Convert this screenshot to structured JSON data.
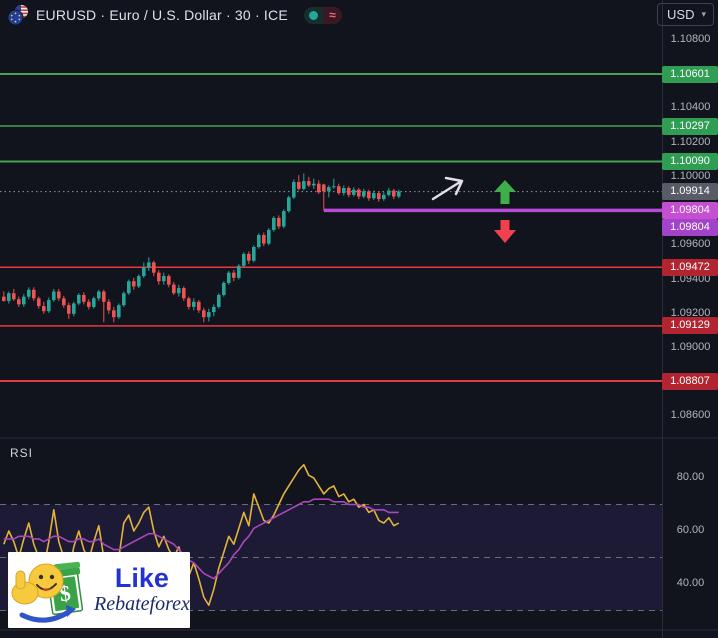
{
  "header": {
    "symbol_title": "EURUSD · Euro / U.S. Dollar · 30 · ICE",
    "delayed_glyph": "≈",
    "currency_selector": {
      "value": "USD",
      "chevron": "▾"
    }
  },
  "colors": {
    "background": "#11141d",
    "up_candle": "#26a69a",
    "down_candle": "#ef5350",
    "resistance_line": "#43a356",
    "support_line": "#e8383f",
    "trade_line": "#bb4ad8",
    "last_price_dotted": "#9598a1",
    "resistance_badge": "#2f9e53",
    "support_badge": "#b2242f",
    "last_price_badge": "#585c66",
    "trade_badge_primary": "#c44fd0",
    "trade_badge_secondary": "#a343c9",
    "rsi_line": "#e3b33a",
    "rsi_ma_line": "#ab47bc",
    "rsi_band_fill": "rgba(126,87,255,0.10)",
    "rsi_dashed": "#6a6d78",
    "up_arrow": "#3fae4a",
    "down_arrow": "#f0414e",
    "drawn_arrow": "#dfe1e6",
    "divider": "#2a2e39"
  },
  "price_axis": {
    "plain_labels": [
      {
        "label": "1.10800",
        "price": 1.108
      },
      {
        "label": "1.10400",
        "price": 1.104
      },
      {
        "label": "1.10200",
        "price": 1.102
      },
      {
        "label": "1.10000",
        "price": 1.1
      },
      {
        "label": "1.09600",
        "price": 1.096
      },
      {
        "label": "1.09400",
        "price": 1.094
      },
      {
        "label": "1.09200",
        "price": 1.092
      },
      {
        "label": "1.09000",
        "price": 1.09
      },
      {
        "label": "1.08600",
        "price": 1.086
      }
    ],
    "badges": [
      {
        "label": "1.10601",
        "price": 1.10601,
        "kind": "resistance",
        "dy": 0
      },
      {
        "label": "1.10297",
        "price": 1.10297,
        "kind": "resistance",
        "dy": 0
      },
      {
        "label": "1.10090",
        "price": 1.1009,
        "kind": "resistance",
        "dy": 0
      },
      {
        "label": "1.09914",
        "price": 1.09914,
        "kind": "last",
        "dy": 0
      },
      {
        "label": "1.09804",
        "price": 1.09804,
        "kind": "trade",
        "dy": 0
      },
      {
        "label": "1.09804",
        "price": 1.09804,
        "kind": "trade2",
        "dy": 17
      },
      {
        "label": "1.09472",
        "price": 1.09472,
        "kind": "support",
        "dy": 0
      },
      {
        "label": "1.09129",
        "price": 1.09129,
        "kind": "support",
        "dy": 0
      },
      {
        "label": "1.08807",
        "price": 1.08807,
        "kind": "support",
        "dy": 0
      }
    ]
  },
  "rsi_pane": {
    "label": "RSI",
    "axis_labels": [
      {
        "label": "80.00",
        "value": 80
      },
      {
        "label": "60.00",
        "value": 60
      },
      {
        "label": "40.00",
        "value": 40
      }
    ]
  },
  "logo": {
    "line1": "Like",
    "line2": "Rebateforex",
    "dollar": "$"
  },
  "chart_data": {
    "type": "candlestick",
    "title": "EURUSD · Euro / U.S. Dollar · 30 · ICE",
    "timeframe": "30",
    "exchange": "ICE",
    "last_price": 1.09914,
    "ylim_price": [
      1.0855,
      1.109
    ],
    "levels": {
      "resistance": [
        1.10601,
        1.10297,
        1.1009
      ],
      "support": [
        1.09472,
        1.09129,
        1.08807
      ],
      "trade_line": 1.09804,
      "trade_line_start_index": 64
    },
    "candles": [
      [
        1.093,
        1.0933,
        1.0927,
        1.09275
      ],
      [
        1.09275,
        1.0933,
        1.0926,
        1.0932
      ],
      [
        1.0932,
        1.09345,
        1.09275,
        1.09285
      ],
      [
        1.09285,
        1.093,
        1.0924,
        1.09255
      ],
      [
        1.09255,
        1.09315,
        1.0924,
        1.093
      ],
      [
        1.093,
        1.09355,
        1.09285,
        1.0934
      ],
      [
        1.0934,
        1.09355,
        1.09275,
        1.0929
      ],
      [
        1.0929,
        1.093,
        1.0923,
        1.09245
      ],
      [
        1.09245,
        1.0927,
        1.092,
        1.09215
      ],
      [
        1.09215,
        1.09295,
        1.09205,
        1.0928
      ],
      [
        1.0928,
        1.09345,
        1.0927,
        1.0933
      ],
      [
        1.0933,
        1.09345,
        1.09275,
        1.0929
      ],
      [
        1.0929,
        1.09305,
        1.09235,
        1.0925
      ],
      [
        1.0925,
        1.09265,
        1.0917,
        1.092
      ],
      [
        1.092,
        1.0927,
        1.09185,
        1.0926
      ],
      [
        1.0926,
        1.0932,
        1.0925,
        1.0931
      ],
      [
        1.0931,
        1.09325,
        1.09255,
        1.0927
      ],
      [
        1.0927,
        1.09285,
        1.09225,
        1.0924
      ],
      [
        1.0924,
        1.093,
        1.0923,
        1.0929
      ],
      [
        1.0929,
        1.0934,
        1.09275,
        1.0933
      ],
      [
        1.0933,
        1.0934,
        1.0915,
        1.0927
      ],
      [
        1.0927,
        1.09285,
        1.092,
        1.0922
      ],
      [
        1.0922,
        1.0924,
        1.0915,
        1.0918
      ],
      [
        1.0918,
        1.0926,
        1.0917,
        1.0925
      ],
      [
        1.0925,
        1.0933,
        1.0924,
        1.0932
      ],
      [
        1.0932,
        1.094,
        1.0931,
        1.0939
      ],
      [
        1.0939,
        1.0941,
        1.0934,
        1.0936
      ],
      [
        1.0936,
        1.0943,
        1.0935,
        1.0942
      ],
      [
        1.0942,
        1.095,
        1.0941,
        1.0947
      ],
      [
        1.0947,
        1.0953,
        1.0945,
        1.095
      ],
      [
        1.095,
        1.0951,
        1.0942,
        1.0944
      ],
      [
        1.0944,
        1.09455,
        1.0937,
        1.0939
      ],
      [
        1.0939,
        1.0944,
        1.0937,
        1.0942
      ],
      [
        1.0942,
        1.0943,
        1.09355,
        1.0937
      ],
      [
        1.0937,
        1.09385,
        1.0931,
        1.0932
      ],
      [
        1.0932,
        1.0937,
        1.093,
        1.0935
      ],
      [
        1.0935,
        1.0936,
        1.09275,
        1.0929
      ],
      [
        1.0929,
        1.093,
        1.09225,
        1.0924
      ],
      [
        1.0924,
        1.0929,
        1.0922,
        1.0927
      ],
      [
        1.0927,
        1.0928,
        1.09205,
        1.0922
      ],
      [
        1.0922,
        1.09235,
        1.0915,
        1.0918
      ],
      [
        1.0918,
        1.0923,
        1.09155,
        1.0921
      ],
      [
        1.0921,
        1.09255,
        1.09185,
        1.0924
      ],
      [
        1.0924,
        1.0932,
        1.0923,
        1.0931
      ],
      [
        1.0931,
        1.0939,
        1.093,
        1.0938
      ],
      [
        1.0938,
        1.0945,
        1.0937,
        1.0944
      ],
      [
        1.0944,
        1.09455,
        1.0939,
        1.0941
      ],
      [
        1.0941,
        1.0949,
        1.094,
        1.0948
      ],
      [
        1.0948,
        1.0956,
        1.0947,
        1.0955
      ],
      [
        1.0955,
        1.09565,
        1.0949,
        1.0951
      ],
      [
        1.0951,
        1.096,
        1.095,
        1.0959
      ],
      [
        1.0959,
        1.0967,
        1.0958,
        1.0966
      ],
      [
        1.0966,
        1.09675,
        1.09595,
        1.0961
      ],
      [
        1.0961,
        1.097,
        1.096,
        1.0969
      ],
      [
        1.0969,
        1.0977,
        1.0968,
        1.0976
      ],
      [
        1.0976,
        1.09775,
        1.09695,
        1.0971
      ],
      [
        1.0971,
        1.0981,
        1.097,
        1.098
      ],
      [
        1.098,
        1.0989,
        1.0979,
        1.0988
      ],
      [
        1.0988,
        1.09985,
        1.0987,
        1.0997
      ],
      [
        1.0997,
        1.1001,
        1.0992,
        1.0993
      ],
      [
        1.0993,
        1.1002,
        1.0992,
        1.09975
      ],
      [
        1.09975,
        1.1,
        1.0994,
        1.0995
      ],
      [
        1.0995,
        1.0999,
        1.0993,
        1.0996
      ],
      [
        1.0996,
        1.0998,
        1.099,
        1.0991
      ],
      [
        1.09955,
        1.0996,
        1.09804,
        1.09915
      ],
      [
        1.09915,
        1.0995,
        1.0988,
        1.0994
      ],
      [
        1.0994,
        1.0999,
        1.0993,
        1.09945
      ],
      [
        1.09945,
        1.0996,
        1.09895,
        1.09905
      ],
      [
        1.09905,
        1.0995,
        1.0989,
        1.09935
      ],
      [
        1.09935,
        1.09945,
        1.0988,
        1.09895
      ],
      [
        1.09895,
        1.0994,
        1.09885,
        1.09925
      ],
      [
        1.09925,
        1.09935,
        1.0987,
        1.09885
      ],
      [
        1.09885,
        1.0993,
        1.09875,
        1.09915
      ],
      [
        1.09915,
        1.09925,
        1.0986,
        1.09875
      ],
      [
        1.09875,
        1.0992,
        1.09865,
        1.09905
      ],
      [
        1.09905,
        1.09915,
        1.09855,
        1.0987
      ],
      [
        1.0987,
        1.0991,
        1.0986,
        1.09895
      ],
      [
        1.09895,
        1.09935,
        1.09885,
        1.0992
      ],
      [
        1.0992,
        1.0993,
        1.0987,
        1.09885
      ],
      [
        1.09885,
        1.09925,
        1.09875,
        1.09914
      ]
    ],
    "indicator": {
      "name": "RSI",
      "band": [
        30,
        70
      ],
      "dashed_levels": [
        70,
        50,
        30
      ],
      "ylabels": [
        80,
        60,
        40
      ],
      "series": [
        {
          "name": "RSI",
          "values": [
            55,
            60,
            56,
            50,
            57,
            63,
            55,
            50,
            46,
            56,
            68,
            56,
            50,
            44,
            54,
            60,
            53,
            49,
            56,
            62,
            50,
            45,
            40,
            50,
            63,
            66,
            60,
            63,
            67,
            69,
            60,
            54,
            58,
            53,
            50,
            54,
            48,
            43,
            48,
            42,
            35,
            32,
            38,
            46,
            52,
            58,
            55,
            61,
            67,
            62,
            74,
            69,
            64,
            63,
            66,
            70,
            74,
            77,
            80,
            83,
            85,
            81,
            80,
            77,
            74,
            76,
            77,
            73,
            74,
            71,
            72,
            69,
            70,
            67,
            68,
            64,
            63,
            65,
            62,
            63
          ]
        },
        {
          "name": "RSI-based MA",
          "values": [
            57,
            57,
            57,
            58,
            58,
            58,
            57,
            57,
            56,
            57,
            58,
            58,
            57,
            56,
            56,
            57,
            57,
            56,
            56,
            57,
            55,
            54,
            53,
            53,
            54,
            55,
            56,
            57,
            58,
            59,
            59,
            58,
            57,
            56,
            55,
            53,
            51,
            49,
            48,
            46,
            44,
            43,
            42,
            44,
            46,
            48,
            51,
            53,
            56,
            58,
            61,
            62,
            63,
            64,
            65,
            66,
            67,
            68,
            69,
            70,
            71,
            71,
            72,
            72,
            72,
            72,
            71,
            71,
            71,
            70,
            70,
            70,
            69,
            69,
            68,
            68,
            68,
            67,
            67,
            67
          ]
        }
      ]
    },
    "annotations": [
      "drawn-white-arrow",
      "green-up-arrow",
      "red-down-arrow"
    ]
  }
}
